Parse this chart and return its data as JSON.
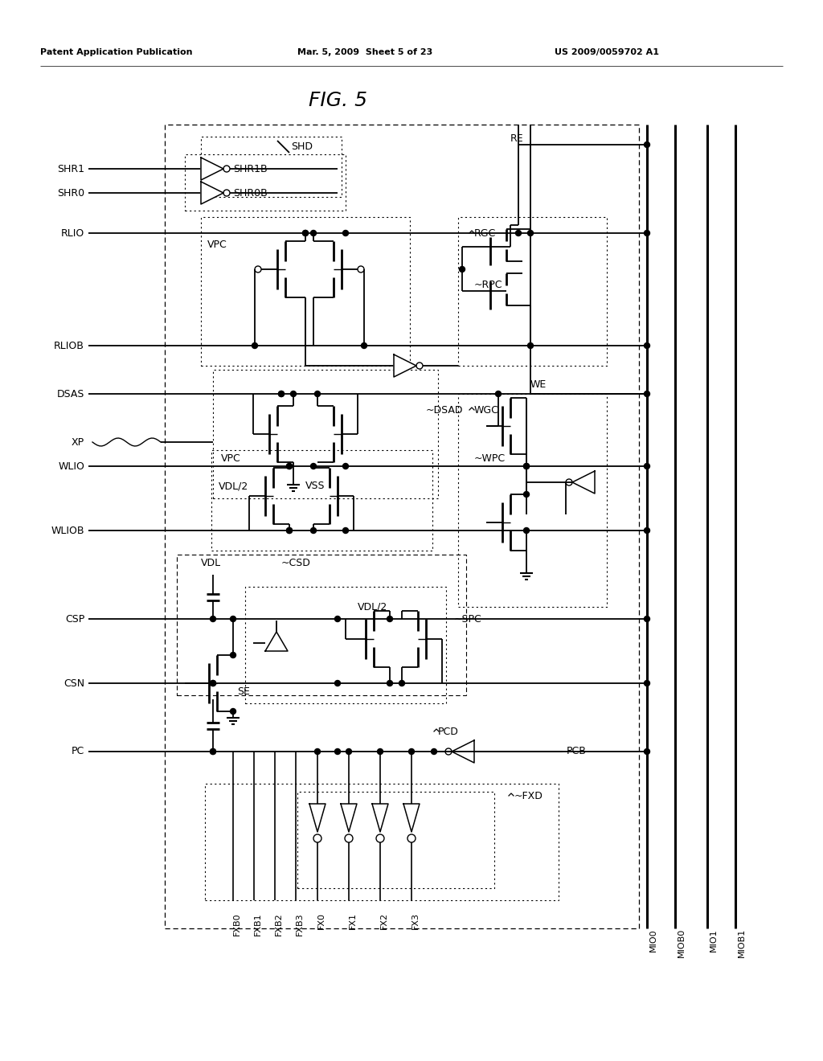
{
  "title": "FIG. 5",
  "header_left": "Patent Application Publication",
  "header_mid": "Mar. 5, 2009  Sheet 5 of 23",
  "header_right": "US 2009/0059702 A1",
  "bg_color": "#ffffff",
  "figure_width": 10.24,
  "figure_height": 13.2,
  "dpi": 100
}
